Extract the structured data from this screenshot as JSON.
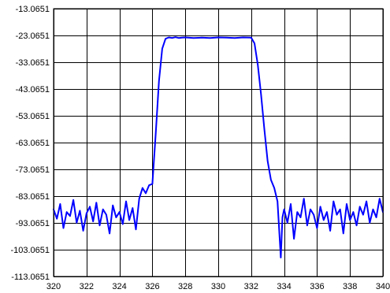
{
  "chart_data": {
    "type": "line",
    "title": "",
    "xlabel": "",
    "ylabel": "",
    "xlim": [
      320,
      340
    ],
    "ylim": [
      -113.0651,
      -13.0651
    ],
    "grid": true,
    "legend": "none",
    "x_ticks": [
      320,
      322,
      324,
      326,
      328,
      330,
      332,
      334,
      336,
      338,
      340
    ],
    "x_tick_labels": [
      "320",
      "322",
      "324",
      "326",
      "328",
      "330",
      "332",
      "334",
      "336",
      "338",
      "340"
    ],
    "y_ticks": [
      -13.0651,
      -23.0651,
      -33.0651,
      -43.0651,
      -53.0651,
      -63.0651,
      -73.0651,
      -83.0651,
      -93.0651,
      -103.0651,
      -113.0651
    ],
    "y_tick_labels": [
      "-13.0651",
      "-23.0651",
      "-33.0651",
      "-43.0651",
      "-53.0651",
      "-63.0651",
      "-73.0651",
      "-83.0651",
      "-93.0651",
      "-103.0651",
      "-113.0651"
    ],
    "series": [
      {
        "color": "#0000ff",
        "x": [
          320.0,
          320.2,
          320.4,
          320.6,
          320.8,
          321.0,
          321.2,
          321.4,
          321.6,
          321.8,
          322.0,
          322.2,
          322.4,
          322.6,
          322.8,
          323.0,
          323.2,
          323.4,
          323.6,
          323.8,
          324.0,
          324.2,
          324.4,
          324.6,
          324.8,
          325.0,
          325.2,
          325.4,
          325.6,
          325.8,
          326.0,
          326.2,
          326.4,
          326.6,
          326.8,
          327.0,
          327.2,
          327.4,
          327.6,
          327.8,
          328.0,
          328.5,
          329.0,
          329.5,
          330.0,
          330.5,
          331.0,
          331.5,
          332.0,
          332.2,
          332.4,
          332.6,
          332.8,
          333.0,
          333.2,
          333.4,
          333.6,
          333.8,
          333.9,
          334.0,
          334.2,
          334.4,
          334.6,
          334.8,
          335.0,
          335.2,
          335.4,
          335.6,
          335.8,
          336.0,
          336.2,
          336.4,
          336.6,
          336.8,
          337.0,
          337.2,
          337.4,
          337.6,
          337.8,
          338.0,
          338.2,
          338.4,
          338.6,
          338.8,
          339.0,
          339.2,
          339.4,
          339.6,
          339.8,
          340.0
        ],
        "y": [
          -88.0,
          -91.5,
          -86.0,
          -95.0,
          -89.0,
          -90.5,
          -84.5,
          -93.0,
          -88.5,
          -96.0,
          -89.5,
          -87.0,
          -92.5,
          -85.5,
          -94.0,
          -88.0,
          -90.0,
          -97.0,
          -86.5,
          -91.0,
          -89.0,
          -93.5,
          -85.0,
          -92.0,
          -87.5,
          -95.5,
          -84.0,
          -80.0,
          -82.0,
          -79.0,
          -78.5,
          -60.0,
          -40.0,
          -28.0,
          -24.3,
          -23.8,
          -24.0,
          -23.7,
          -24.0,
          -23.9,
          -23.8,
          -24.0,
          -23.9,
          -24.0,
          -23.8,
          -23.9,
          -24.0,
          -23.8,
          -23.9,
          -26.0,
          -34.0,
          -45.0,
          -58.0,
          -70.0,
          -77.0,
          -80.0,
          -85.0,
          -106.0,
          -91.0,
          -88.0,
          -93.0,
          -86.0,
          -99.0,
          -89.0,
          -91.0,
          -84.0,
          -94.0,
          -88.0,
          -90.0,
          -95.0,
          -87.0,
          -92.0,
          -89.0,
          -96.0,
          -85.0,
          -90.0,
          -88.0,
          -97.0,
          -86.0,
          -92.0,
          -89.0,
          -94.0,
          -87.0,
          -90.0,
          -85.0,
          -93.0,
          -88.0,
          -91.0,
          -84.0,
          -89.0
        ]
      }
    ]
  }
}
